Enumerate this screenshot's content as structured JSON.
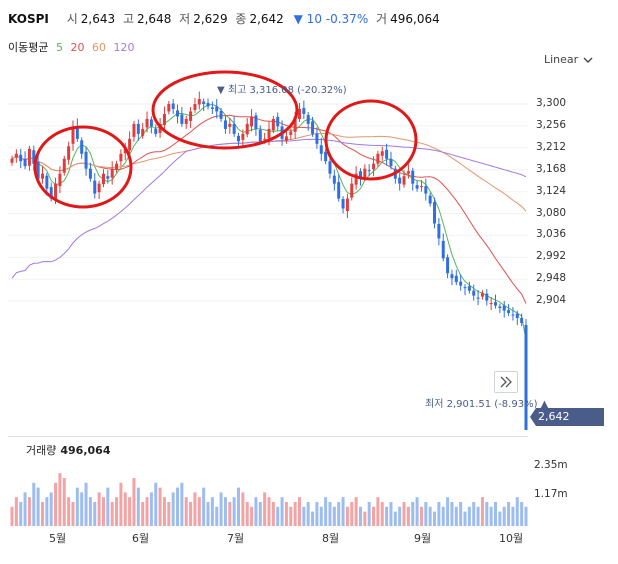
{
  "header": {
    "symbol": "KOSPI",
    "open_label": "시",
    "open": "2,643",
    "high_label": "고",
    "high": "2,648",
    "low_label": "저",
    "low": "2,629",
    "close_label": "종",
    "close": "2,642",
    "change": "▼ 10 -0.37%",
    "volume_label": "거",
    "volume": "496,064"
  },
  "moving_avg": {
    "label": "이동평균",
    "periods": [
      {
        "text": "5",
        "color": "#5ab55a"
      },
      {
        "text": "20",
        "color": "#e05252"
      },
      {
        "text": "60",
        "color": "#e0986a"
      },
      {
        "text": "120",
        "color": "#a07ae0"
      }
    ]
  },
  "scale_mode": "Linear",
  "price_axis": [
    "3,300",
    "3,256",
    "3,212",
    "3,168",
    "3,124",
    "3,080",
    "3,036",
    "2,992",
    "2,948",
    "2,904"
  ],
  "annotations": {
    "high_note": "▼ 최고 3,316.08 (-20.32%)",
    "low_note": "최저 2,901.51 (-8.93%) ▲"
  },
  "last_price_tag": "2,642",
  "volume_panel": {
    "label": "거래량",
    "value": "496,064",
    "axis": [
      "2.35m",
      "1.17m"
    ]
  },
  "x_axis": [
    "5월",
    "6월",
    "7월",
    "8월",
    "9월",
    "10월"
  ],
  "colors": {
    "up": "#e03c3c",
    "down": "#2f6fe0",
    "highlight_circle": "#e01818"
  },
  "chart_data": {
    "type": "candlestick",
    "ylim": [
      2880,
      3330
    ],
    "closes": [
      3190,
      3200,
      3185,
      3175,
      3210,
      3180,
      3150,
      3160,
      3130,
      3110,
      3140,
      3160,
      3190,
      3215,
      3255,
      3230,
      3200,
      3170,
      3150,
      3120,
      3140,
      3160,
      3150,
      3170,
      3180,
      3200,
      3210,
      3230,
      3260,
      3240,
      3250,
      3270,
      3255,
      3240,
      3260,
      3280,
      3300,
      3290,
      3275,
      3260,
      3270,
      3285,
      3300,
      3310,
      3300,
      3295,
      3290,
      3285,
      3270,
      3250,
      3260,
      3240,
      3225,
      3240,
      3260,
      3275,
      3250,
      3225,
      3230,
      3250,
      3270,
      3255,
      3230,
      3235,
      3245,
      3275,
      3290,
      3280,
      3260,
      3240,
      3220,
      3200,
      3185,
      3160,
      3140,
      3110,
      3090,
      3110,
      3140,
      3160,
      3150,
      3170,
      3165,
      3180,
      3200,
      3205,
      3190,
      3175,
      3150,
      3140,
      3155,
      3165,
      3140,
      3130,
      3135,
      3120,
      3100,
      3060,
      3030,
      2990,
      2960,
      2950,
      2942,
      2935,
      2930,
      2925,
      2915,
      2910,
      2920,
      2905,
      2900,
      2895,
      2890,
      2885,
      2880,
      2875,
      2870,
      2860,
      2642
    ],
    "volumes": [
      0.4,
      0.6,
      0.5,
      0.7,
      0.6,
      0.9,
      0.8,
      0.5,
      0.6,
      0.7,
      0.9,
      1.1,
      1.0,
      0.6,
      0.5,
      0.8,
      0.7,
      0.9,
      0.6,
      0.5,
      0.7,
      0.6,
      0.8,
      0.5,
      0.6,
      0.9,
      0.7,
      0.6,
      1.0,
      0.8,
      0.5,
      0.6,
      0.7,
      0.9,
      0.8,
      0.6,
      0.5,
      0.7,
      0.8,
      0.9,
      0.6,
      0.5,
      0.7,
      0.6,
      0.8,
      0.5,
      0.6,
      0.4,
      0.7,
      0.6,
      0.5,
      0.6,
      0.8,
      0.7,
      0.5,
      0.4,
      0.6,
      0.5,
      0.7,
      0.6,
      0.5,
      0.4,
      0.6,
      0.5,
      0.4,
      0.5,
      0.6,
      0.4,
      0.5,
      0.3,
      0.5,
      0.4,
      0.6,
      0.5,
      0.4,
      0.5,
      0.6,
      0.4,
      0.5,
      0.6,
      0.4,
      0.3,
      0.5,
      0.4,
      0.6,
      0.5,
      0.4,
      0.5,
      0.3,
      0.4,
      0.5,
      0.4,
      0.5,
      0.6,
      0.4,
      0.5,
      0.4,
      0.3,
      0.5,
      0.4,
      0.6,
      0.5,
      0.4,
      0.5,
      0.3,
      0.4,
      0.5,
      0.4,
      0.6,
      0.5,
      0.4,
      0.5,
      0.3,
      0.4,
      0.5,
      0.4,
      0.6,
      0.5,
      0.4
    ]
  }
}
